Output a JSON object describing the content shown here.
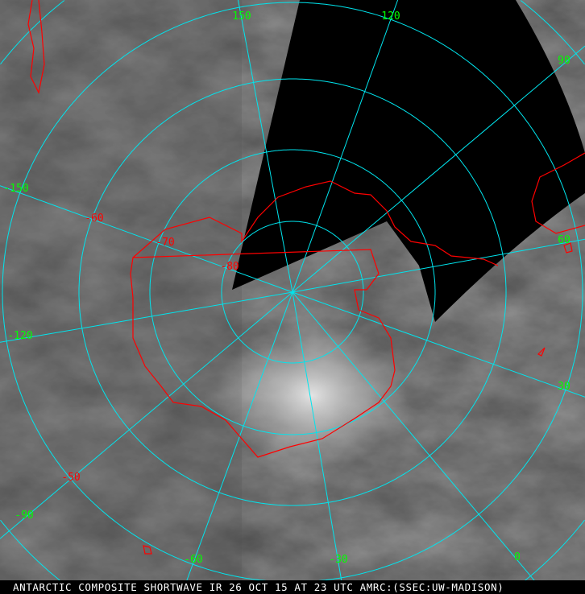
{
  "caption": "ANTARCTIC COMPOSITE SHORTWAVE IR 26 OCT 15 AT 23 UTC AMRC:(SSEC:UW-MADISON)",
  "caption_marker": "3",
  "colors": {
    "grid": "#00e5ee",
    "coast": "#ff0000",
    "meridian_label": "#00ff00",
    "latitude_label": "#ff0000",
    "no_data": "#000000"
  },
  "meridian_labels": [
    "150",
    "120",
    "90",
    "60",
    "30",
    "0",
    "-30",
    "-60",
    "-90",
    "-120",
    "-150"
  ],
  "latitude_labels": [
    "-80",
    "-70",
    "-60",
    "-50"
  ]
}
